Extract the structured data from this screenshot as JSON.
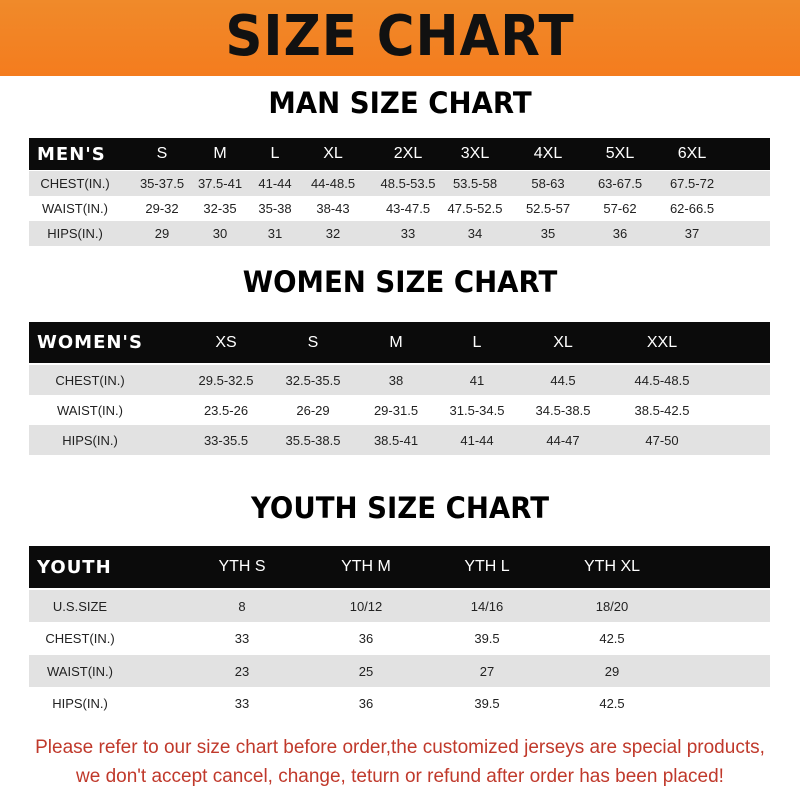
{
  "banner": {
    "title": "SIZE CHART",
    "color": "#f47c1e"
  },
  "men": {
    "title": "MAN SIZE CHART",
    "header": [
      "MEN'S",
      "S",
      "M",
      "L",
      "XL",
      "2XL",
      "3XL",
      "4XL",
      "5XL",
      "6XL"
    ],
    "rows": [
      [
        "CHEST(IN.)",
        "35-37.5",
        "37.5-41",
        "41-44",
        "44-48.5",
        "48.5-53.5",
        "53.5-58",
        "58-63",
        "63-67.5",
        "67.5-72"
      ],
      [
        "WAIST(IN.)",
        "29-32",
        "32-35",
        "35-38",
        "38-43",
        "43-47.5",
        "47.5-52.5",
        "52.5-57",
        "57-62",
        "62-66.5"
      ],
      [
        "HIPS(IN.)",
        "29",
        "30",
        "31",
        "32",
        "33",
        "34",
        "35",
        "36",
        "37"
      ]
    ]
  },
  "women": {
    "title": "WOMEN SIZE CHART",
    "header": [
      "WOMEN'S",
      "XS",
      "S",
      "M",
      "L",
      "XL",
      "XXL"
    ],
    "rows": [
      [
        "CHEST(IN.)",
        "29.5-32.5",
        "32.5-35.5",
        "38",
        "41",
        "44.5",
        "44.5-48.5"
      ],
      [
        "WAIST(IN.)",
        "23.5-26",
        "26-29",
        "29-31.5",
        "31.5-34.5",
        "34.5-38.5",
        "38.5-42.5"
      ],
      [
        "HIPS(IN.)",
        "33-35.5",
        "35.5-38.5",
        "38.5-41",
        "41-44",
        "44-47",
        "47-50"
      ]
    ]
  },
  "youth": {
    "title": "YOUTH SIZE CHART",
    "header": [
      "YOUTH",
      "YTH S",
      "YTH M",
      "YTH L",
      "YTH XL"
    ],
    "rows": [
      [
        "U.S.SIZE",
        "8",
        "10/12",
        "14/16",
        "18/20"
      ],
      [
        "CHEST(IN.)",
        "33",
        "36",
        "39.5",
        "42.5"
      ],
      [
        "WAIST(IN.)",
        "23",
        "25",
        "27",
        "29"
      ],
      [
        "HIPS(IN.)",
        "33",
        "36",
        "39.5",
        "42.5"
      ]
    ]
  },
  "footer": {
    "line1": "Please refer to our size chart before order,the customized jerseys are special products,",
    "line2": "we don't accept cancel, change, teturn or refund after order has been placed!",
    "color": "#c0392b"
  }
}
